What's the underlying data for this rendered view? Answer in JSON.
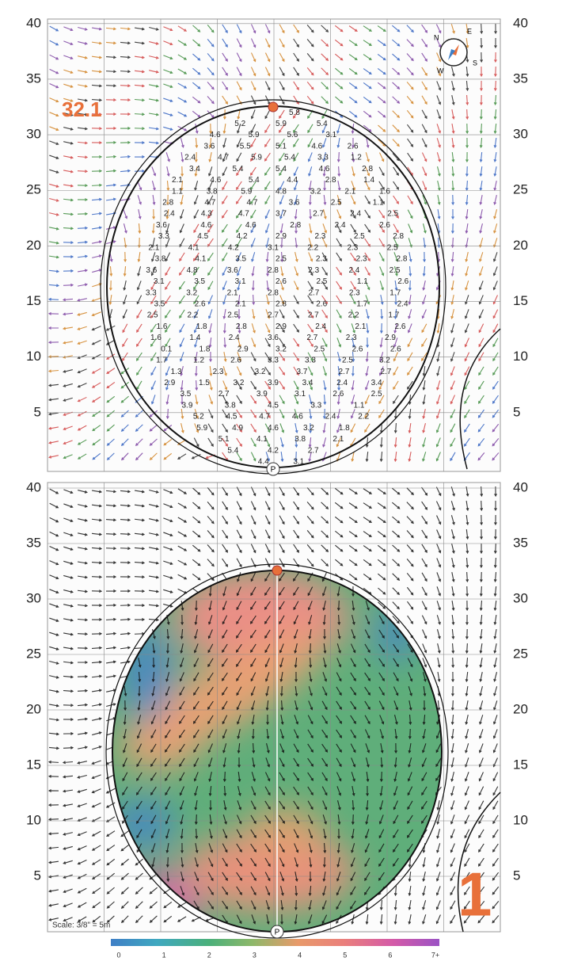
{
  "header": {
    "green_number": "1",
    "elevation_label": "32.1",
    "scale_note": "Scale: 3/8\" = 5m",
    "pin_marker": "P"
  },
  "compass": {
    "north": "N",
    "east": "E",
    "south": "S",
    "west": "W"
  },
  "axis": {
    "ylim": [
      0,
      40
    ],
    "yticks": [
      40,
      35,
      30,
      25,
      20,
      15,
      10,
      5
    ]
  },
  "slope_map": {
    "rows": [
      [
        5.8
      ],
      [
        5.2,
        5.9,
        5.4
      ],
      [
        4.6,
        5.9,
        5.6,
        3.1
      ],
      [
        3.6,
        5.5,
        5.1,
        4.6,
        2.6
      ],
      [
        2.4,
        4.7,
        5.9,
        5.4,
        3.3,
        1.2
      ],
      [
        3.4,
        5.4,
        5.4,
        4.6,
        2.8
      ],
      [
        2.1,
        4.6,
        5.4,
        4.4,
        2.8,
        1.4
      ],
      [
        1.1,
        3.8,
        5.9,
        4.8,
        3.2,
        2.1,
        1.6
      ],
      [
        2.8,
        4.7,
        4.7,
        3.6,
        2.5,
        1.1
      ],
      [
        2.4,
        4.3,
        4.7,
        3.7,
        2.7,
        2.4,
        2.5
      ],
      [
        3.6,
        4.6,
        4.6,
        2.8,
        2.4,
        2.6
      ],
      [
        3.3,
        4.5,
        4.2,
        2.9,
        2.3,
        2.5,
        2.8
      ],
      [
        2.1,
        4.1,
        4.2,
        3.1,
        2.2,
        2.3,
        2.5
      ],
      [
        3.8,
        4.1,
        3.5,
        2.5,
        2.3,
        2.3,
        2.8
      ],
      [
        3.6,
        4.8,
        3.6,
        2.8,
        2.3,
        2.4,
        2.5
      ],
      [
        3.1,
        3.5,
        3.1,
        2.6,
        2.5,
        1.1,
        2.6
      ],
      [
        3.3,
        3.2,
        2.1,
        2.8,
        2.7,
        2.3,
        1.7
      ],
      [
        3.5,
        2.6,
        2.1,
        2.8,
        2.6,
        1.7,
        2.4
      ],
      [
        2.5,
        2.2,
        2.5,
        2.7,
        2.7,
        2.2,
        1.7
      ],
      [
        1.6,
        1.8,
        2.8,
        2.9,
        2.4,
        2.1,
        2.6
      ],
      [
        1.6,
        1.4,
        2.4,
        3.6,
        2.7,
        2.3,
        2.9
      ],
      [
        0.1,
        1.8,
        2.9,
        3.2,
        2.5,
        2.6,
        2.6
      ],
      [
        1.7,
        1.2,
        2.6,
        3.3,
        3.3,
        2.5,
        3.2
      ],
      [
        1.3,
        2.3,
        3.2,
        3.7,
        2.7,
        2.7
      ],
      [
        2.9,
        1.5,
        3.2,
        3.9,
        3.4,
        2.4,
        3.4
      ],
      [
        3.5,
        2.7,
        3.9,
        3.1,
        2.6,
        2.5
      ],
      [
        3.9,
        3.8,
        4.5,
        3.3,
        1.1
      ],
      [
        5.2,
        4.5,
        4.7,
        4.6,
        2.4,
        2.2
      ],
      [
        5.9,
        4.9,
        4.6,
        3.2,
        1.8
      ],
      [
        5.1,
        4.1,
        3.8,
        2.1
      ],
      [
        5.4,
        4.2,
        2.7
      ],
      [
        4.4,
        3.1
      ]
    ]
  },
  "colorbar": {
    "ticks": [
      0,
      1,
      2,
      3,
      4,
      5,
      6,
      {
        "value": 7,
        "label": "7+"
      }
    ],
    "colors": [
      "#3f7fc6",
      "#3fa8c0",
      "#4bb07a",
      "#8db86a",
      "#e89a6a",
      "#ea7f7c",
      "#d45aa8",
      "#9b52c4"
    ]
  }
}
